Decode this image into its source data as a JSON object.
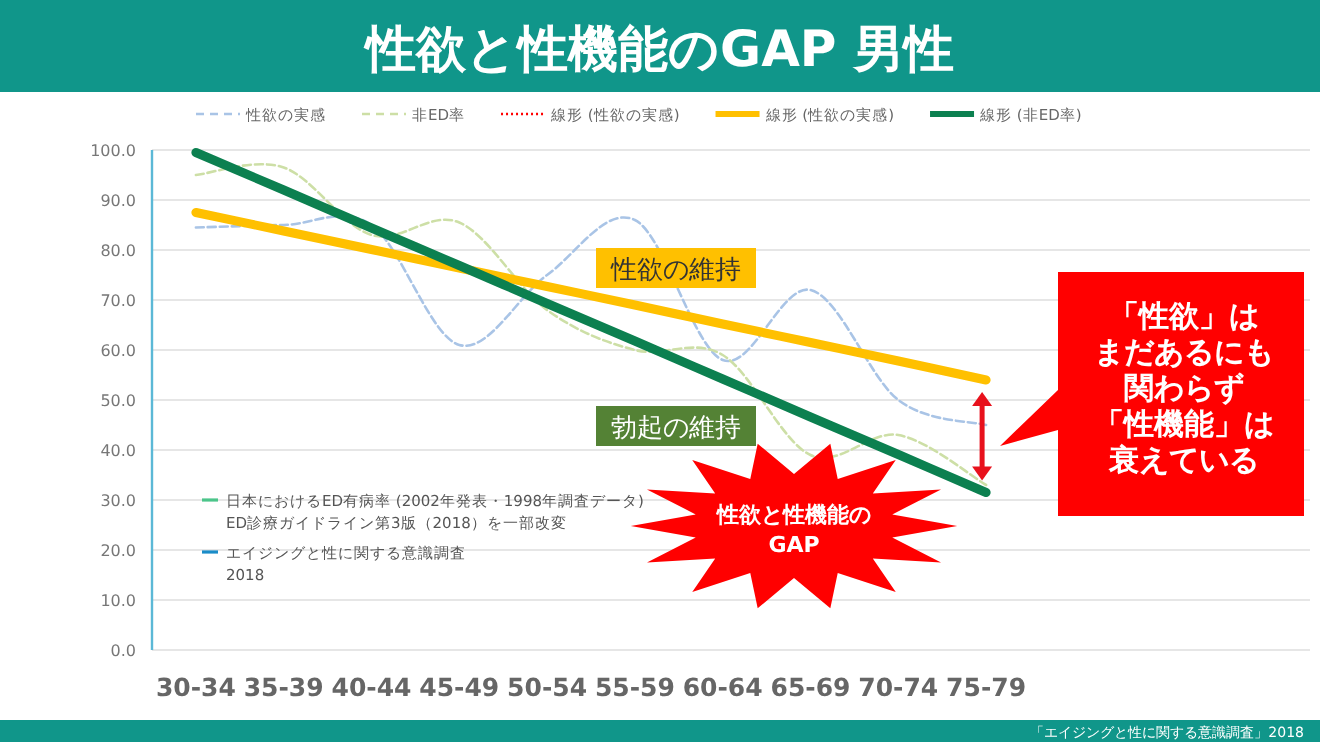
{
  "chart_data": {
    "type": "line",
    "title": "性欲と性機能のGAP 男性",
    "categories": [
      "30-34",
      "35-39",
      "40-44",
      "45-49",
      "50-54",
      "55-59",
      "60-64",
      "65-69",
      "70-74",
      "75-79"
    ],
    "series": [
      {
        "name": "性欲の実感",
        "color": "#a9c4e6",
        "line_style": "dashed",
        "values": [
          84.5,
          85,
          85,
          61,
          75,
          86,
          58,
          72,
          50,
          45
        ]
      },
      {
        "name": "非ED率",
        "color": "#cddfa6",
        "line_style": "dashed",
        "values": [
          95,
          96.5,
          83,
          85.5,
          68,
          60,
          59,
          39,
          43,
          33
        ]
      },
      {
        "name": "線形 (性欲の実感)",
        "color": "#ff0000",
        "line_style": "dotted",
        "values": [
          null,
          null,
          null,
          null,
          null,
          null,
          null,
          null,
          null,
          null
        ]
      },
      {
        "name": "線形 (性欲の実感)",
        "color": "#ffc000",
        "line_style": "solid",
        "values": [
          87.5,
          83.8,
          80.1,
          76.4,
          72.7,
          69,
          65.2,
          61.5,
          57.8,
          54
        ]
      },
      {
        "name": "線形 (非ED率)",
        "color": "#0c8050",
        "line_style": "solid",
        "values": [
          99.5,
          92,
          84.4,
          76.9,
          69.3,
          61.8,
          54.2,
          46.6,
          39.1,
          31.5
        ]
      }
    ],
    "ylim": [
      0,
      100
    ],
    "yticks": [
      {
        "value": 0,
        "label": "0.0"
      },
      {
        "value": 10,
        "label": "10.0"
      },
      {
        "value": 20,
        "label": "20.0"
      },
      {
        "value": 30,
        "label": "30.0"
      },
      {
        "value": 40,
        "label": "40.0"
      },
      {
        "value": 50,
        "label": "50.0"
      },
      {
        "value": 60,
        "label": "60.0"
      },
      {
        "value": 70,
        "label": "70.0"
      },
      {
        "value": 80,
        "label": "80.0"
      },
      {
        "value": 90,
        "label": "90.0"
      },
      {
        "value": 100,
        "label": "100.0"
      }
    ],
    "grid": "y",
    "legend": "top",
    "marker": "none",
    "annotations": [
      "性欲の維持",
      "勃起の維持",
      "性欲と性機能の\nGAP",
      "「性欲」は",
      "まだあるにも",
      "関わらず",
      "「性機能」は",
      "衰えている",
      "日本におけるED有病率 (2002年発表・1998年調査データ)\nED診療ガイドライン第3版（2018）を一部改変",
      "エイジングと性に関する意識調査\n2018",
      "「エイジングと性に関する意識調査」2018"
    ]
  }
}
